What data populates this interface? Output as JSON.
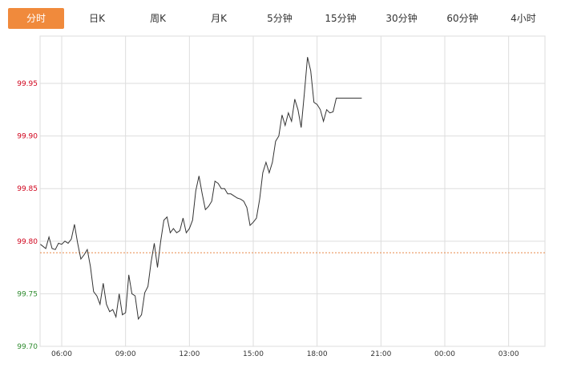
{
  "tabs": [
    {
      "label": "分时",
      "active": true
    },
    {
      "label": "日K",
      "active": false
    },
    {
      "label": "周K",
      "active": false
    },
    {
      "label": "月K",
      "active": false
    },
    {
      "label": "5分钟",
      "active": false
    },
    {
      "label": "15分钟",
      "active": false
    },
    {
      "label": "30分钟",
      "active": false
    },
    {
      "label": "60分钟",
      "active": false
    },
    {
      "label": "4小时",
      "active": false
    }
  ],
  "colors": {
    "accent": "#f08a3c",
    "up": "#d0021b",
    "down": "#2e8b2e",
    "line": "#333333",
    "grid": "#dddddd",
    "reference": "#e8894a"
  },
  "chart_data": {
    "type": "line",
    "title": "",
    "xlabel": "",
    "ylabel": "",
    "x_ticks": [
      "06:00",
      "09:00",
      "12:00",
      "15:00",
      "18:00",
      "21:00",
      "00:00",
      "03:00"
    ],
    "y_ticks": [
      "99.70",
      "99.75",
      "99.80",
      "99.85",
      "99.90",
      "99.95"
    ],
    "ylim": [
      99.7,
      99.995
    ],
    "x_unit": "hours since 05:00",
    "xlim": [
      0,
      24.3
    ],
    "reference_value": 99.789,
    "grid": true,
    "series": [
      {
        "name": "",
        "x": [
          0.0,
          0.25,
          0.4,
          0.55,
          0.7,
          0.85,
          1.0,
          1.15,
          1.3,
          1.45,
          1.6,
          1.75,
          1.9,
          2.05,
          2.2,
          2.35,
          2.5,
          2.65,
          2.8,
          2.95,
          3.1,
          3.25,
          3.4,
          3.55,
          3.7,
          3.85,
          4.0,
          4.15,
          4.3,
          4.45,
          4.6,
          4.75,
          4.9,
          5.05,
          5.2,
          5.35,
          5.5,
          5.65,
          5.8,
          5.95,
          6.1,
          6.25,
          6.4,
          6.55,
          6.7,
          6.85,
          7.0,
          7.15,
          7.3,
          7.45,
          7.6,
          7.75,
          7.9,
          8.05,
          8.2,
          8.35,
          8.5,
          8.65,
          8.8,
          8.95,
          9.1,
          9.25,
          9.4,
          9.55,
          9.7,
          9.85,
          10.0,
          10.15,
          10.3,
          10.45,
          10.6,
          10.75,
          10.9,
          11.05,
          11.2,
          11.35,
          11.5,
          11.65,
          11.8,
          11.95,
          12.1,
          12.25,
          12.4,
          12.55,
          12.7,
          12.85,
          13.0,
          13.15,
          13.3,
          13.45,
          13.6,
          13.75,
          13.9,
          14.05,
          14.2,
          14.35,
          14.5,
          14.65,
          14.8,
          14.95,
          15.1
        ],
        "values": [
          99.797,
          99.793,
          99.804,
          99.793,
          99.792,
          99.798,
          99.797,
          99.8,
          99.798,
          99.802,
          99.816,
          99.798,
          99.783,
          99.787,
          99.792,
          99.776,
          99.752,
          99.748,
          99.74,
          99.76,
          99.74,
          99.733,
          99.735,
          99.728,
          99.75,
          99.73,
          99.732,
          99.768,
          99.75,
          99.748,
          99.726,
          99.73,
          99.751,
          99.757,
          99.78,
          99.798,
          99.775,
          99.8,
          99.82,
          99.823,
          99.808,
          99.812,
          99.808,
          99.81,
          99.822,
          99.808,
          99.812,
          99.82,
          99.848,
          99.862,
          99.845,
          99.83,
          99.833,
          99.838,
          99.857,
          99.855,
          99.85,
          99.85,
          99.845,
          99.845,
          99.843,
          99.841,
          99.84,
          99.838,
          99.832,
          99.815,
          99.818,
          99.822,
          99.84,
          99.865,
          99.875,
          99.865,
          99.875,
          99.895,
          99.9,
          99.92,
          99.91,
          99.922,
          99.914,
          99.935,
          99.925,
          99.908,
          99.94,
          99.975,
          99.962,
          99.932,
          99.93,
          99.925,
          99.914,
          99.925,
          99.922,
          99.923,
          99.936,
          99.936,
          99.936,
          99.936,
          99.936,
          99.936,
          99.936,
          99.936,
          99.936
        ]
      }
    ]
  }
}
